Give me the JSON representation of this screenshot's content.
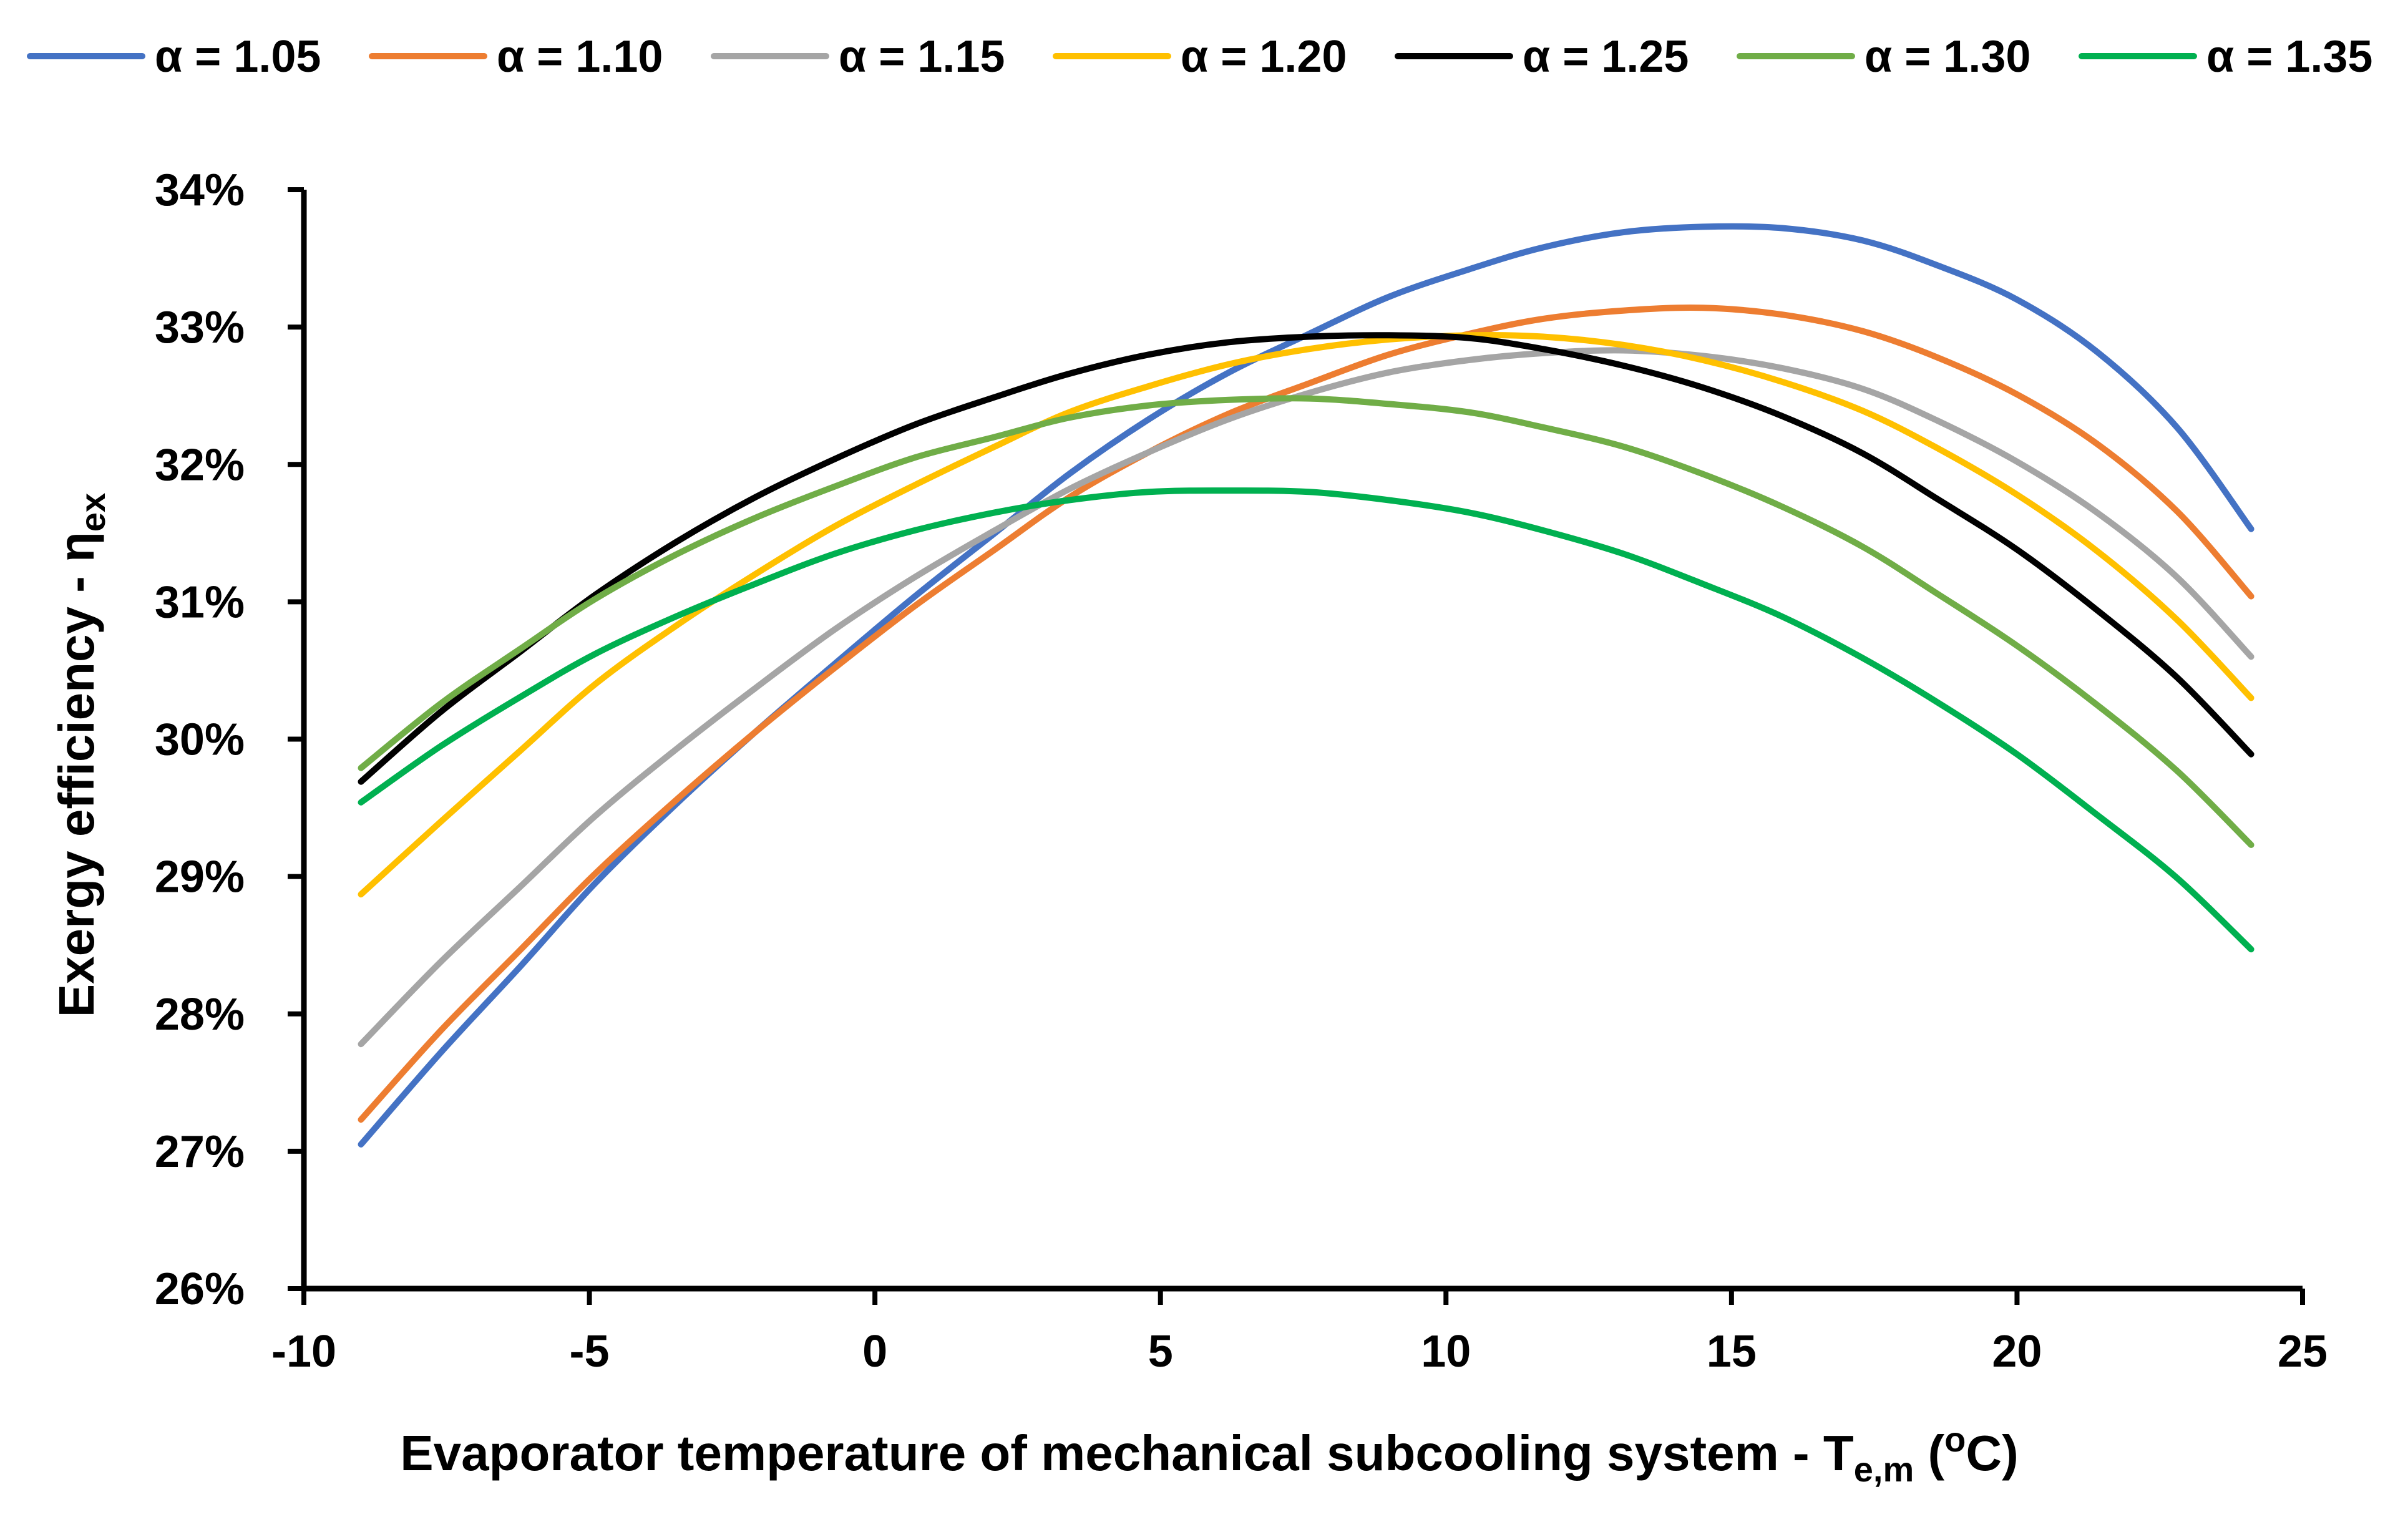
{
  "chart_data": {
    "type": "line",
    "title": "",
    "xlabel": {
      "main": "Evaporator temperature of mechanical subcooling system - T",
      "sub": "e,m",
      "paren_open": " (",
      "sup": "o",
      "unit": "C)"
    },
    "ylabel": {
      "main": "Exergy efficiency - η",
      "sub": "ex"
    },
    "xlim": [
      -10,
      25
    ],
    "ylim": [
      26,
      34
    ],
    "x_ticks": [
      -10,
      -5,
      0,
      5,
      10,
      15,
      20,
      25
    ],
    "x_tick_labels": [
      "-10",
      "-5",
      "0",
      "5",
      "10",
      "15",
      "20",
      "25"
    ],
    "y_ticks": [
      26,
      27,
      28,
      29,
      30,
      31,
      32,
      33,
      34
    ],
    "y_tick_labels": [
      "26%",
      "27%",
      "28%",
      "29%",
      "30%",
      "31%",
      "32%",
      "33%",
      "34%"
    ],
    "legend_position": "top",
    "grid": false,
    "x": [
      -9.0,
      -7.6,
      -6.2,
      -4.9,
      -3.5,
      -2.1,
      -0.7,
      0.7,
      2.1,
      3.4,
      4.8,
      6.2,
      7.6,
      9.0,
      10.4,
      11.7,
      13.1,
      14.5,
      15.9,
      17.3,
      18.6,
      20.0,
      21.4,
      22.8,
      24.1
    ],
    "series": [
      {
        "name": "α = 1.05",
        "color": "#4472C4",
        "values": [
          27.05,
          27.72,
          28.35,
          28.95,
          29.52,
          30.05,
          30.55,
          31.04,
          31.5,
          31.93,
          32.33,
          32.67,
          32.95,
          33.22,
          33.42,
          33.58,
          33.69,
          33.73,
          33.72,
          33.63,
          33.45,
          33.2,
          32.82,
          32.27,
          31.53
        ]
      },
      {
        "name": "α = 1.10",
        "color": "#ED7D31",
        "values": [
          27.23,
          27.88,
          28.47,
          29.02,
          29.55,
          30.05,
          30.52,
          30.97,
          31.38,
          31.76,
          32.09,
          32.37,
          32.59,
          32.8,
          32.95,
          33.06,
          33.12,
          33.14,
          33.09,
          32.97,
          32.78,
          32.51,
          32.15,
          31.66,
          31.04
        ]
      },
      {
        "name": "α = 1.15",
        "color": "#A5A5A5",
        "values": [
          27.78,
          28.38,
          28.93,
          29.44,
          29.92,
          30.37,
          30.8,
          31.18,
          31.52,
          31.82,
          32.09,
          32.33,
          32.52,
          32.67,
          32.76,
          32.81,
          32.83,
          32.79,
          32.7,
          32.55,
          32.32,
          32.02,
          31.65,
          31.18,
          30.6
        ]
      },
      {
        "name": "α = 1.20",
        "color": "#FFC000",
        "values": [
          28.87,
          29.4,
          29.92,
          30.4,
          30.82,
          31.2,
          31.55,
          31.85,
          32.13,
          32.38,
          32.57,
          32.73,
          32.84,
          32.91,
          32.94,
          32.93,
          32.87,
          32.76,
          32.6,
          32.39,
          32.12,
          31.78,
          31.37,
          30.87,
          30.3
        ]
      },
      {
        "name": "α = 1.25",
        "color": "#000000",
        "values": [
          29.69,
          30.2,
          30.64,
          31.05,
          31.43,
          31.76,
          32.04,
          32.29,
          32.49,
          32.66,
          32.8,
          32.89,
          32.93,
          32.94,
          32.92,
          32.84,
          32.72,
          32.56,
          32.35,
          32.08,
          31.75,
          31.38,
          30.94,
          30.45,
          29.89
        ]
      },
      {
        "name": "α = 1.30",
        "color": "#70AD47",
        "values": [
          29.79,
          30.26,
          30.66,
          31.02,
          31.34,
          31.61,
          31.84,
          32.05,
          32.2,
          32.34,
          32.43,
          32.47,
          32.48,
          32.44,
          32.38,
          32.27,
          32.13,
          31.93,
          31.69,
          31.4,
          31.06,
          30.68,
          30.25,
          29.77,
          29.23
        ]
      },
      {
        "name": "α = 1.35",
        "color": "#00B050",
        "values": [
          29.54,
          29.95,
          30.31,
          30.62,
          30.89,
          31.13,
          31.35,
          31.52,
          31.65,
          31.74,
          31.8,
          31.81,
          31.8,
          31.74,
          31.65,
          31.52,
          31.35,
          31.13,
          30.89,
          30.59,
          30.27,
          29.89,
          29.45,
          28.99,
          28.47
        ]
      }
    ]
  }
}
